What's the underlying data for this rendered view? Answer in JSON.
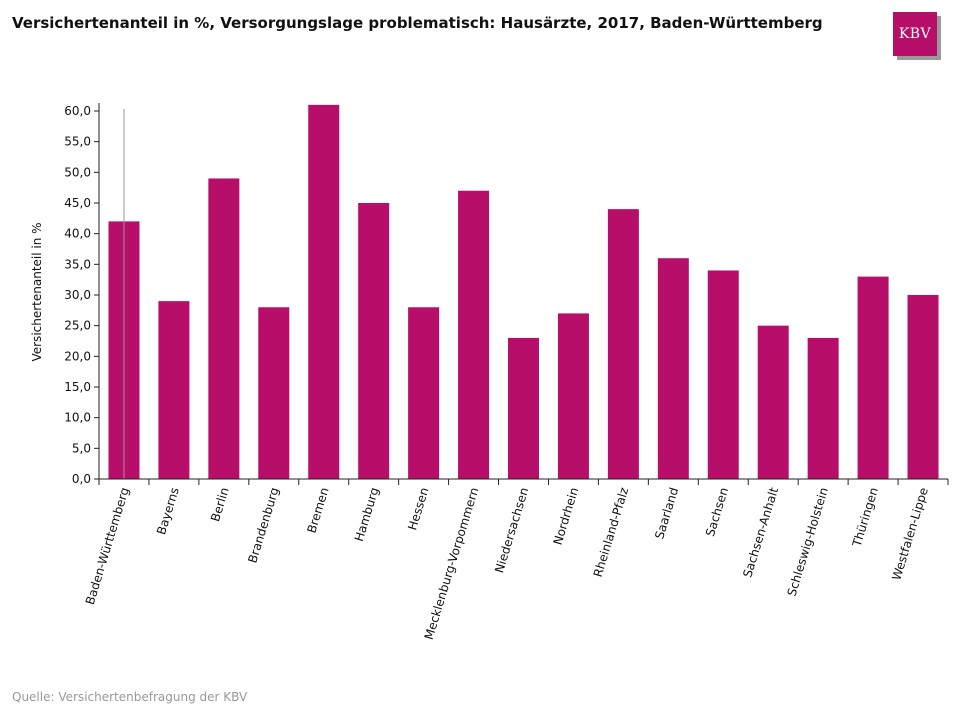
{
  "title": "Versichertenanteil in %, Versorgungslage problematisch: Hausärzte, 2017, Baden-Württemberg",
  "logo": {
    "text": "KBV",
    "color": "#b70e6a"
  },
  "source": "Quelle: Versichertenbefragung der KBV",
  "chart_data": {
    "type": "bar",
    "title": "Versichertenanteil in %, Versorgungslage problematisch: Hausärzte, 2017, Baden-Württemberg",
    "xlabel": "",
    "ylabel": "Versichertenanteil in %",
    "ylim": [
      0,
      60
    ],
    "yticks": [
      "0,0",
      "5,0",
      "10,0",
      "15,0",
      "20,0",
      "25,0",
      "30,0",
      "35,0",
      "40,0",
      "45,0",
      "50,0",
      "55,0",
      "60,0"
    ],
    "bar_color": "#b70e6a",
    "highlighted_category": "Baden-Württemberg",
    "grid": false,
    "categories": [
      "Baden-Württemberg",
      "Bayerns",
      "Berlin",
      "Brandenburg",
      "Bremen",
      "Hamburg",
      "Hessen",
      "Mecklenburg-Vorpommern",
      "Niedersachsen",
      "Nordrhein",
      "Rheinland-Pfalz",
      "Saarland",
      "Sachsen",
      "Sachsen-Anhalt",
      "Schleswig-Holstein",
      "Thüringen",
      "Westfalen-Lippe"
    ],
    "values": [
      42,
      29,
      49,
      28,
      61,
      45,
      28,
      47,
      23,
      27,
      44,
      36,
      34,
      25,
      23,
      33,
      30
    ]
  }
}
